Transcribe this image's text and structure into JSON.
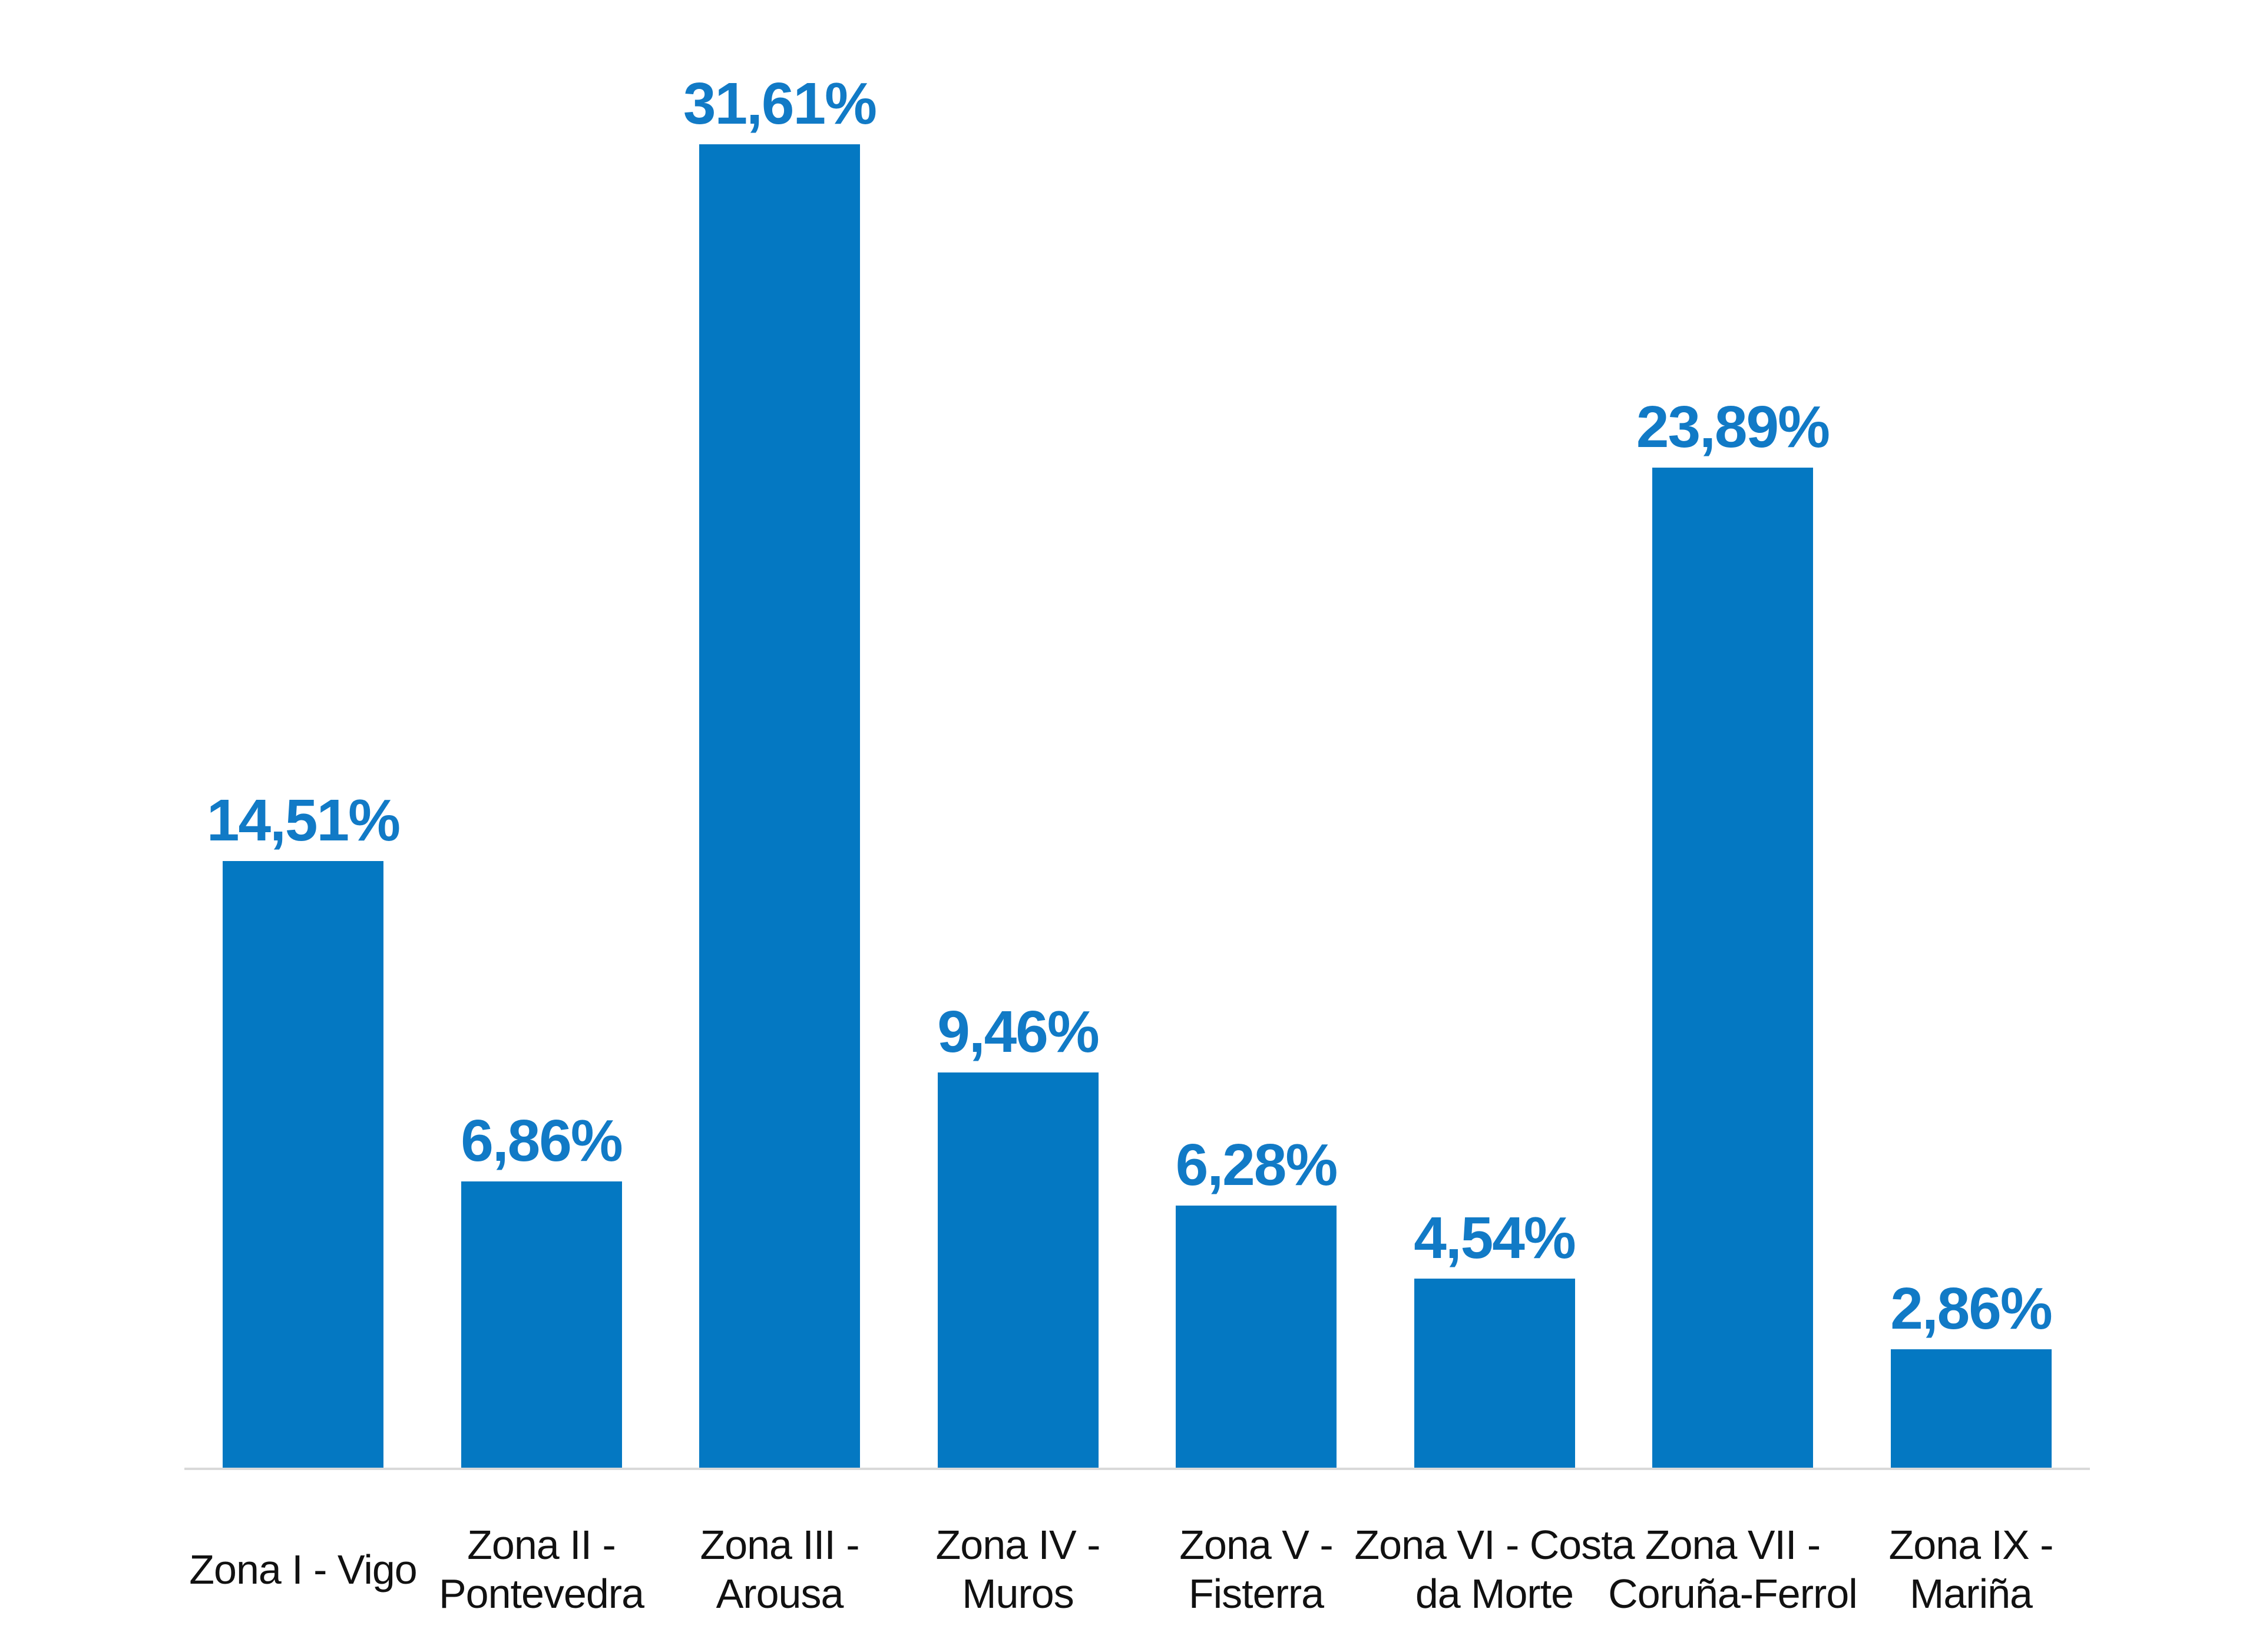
{
  "page": {
    "background": "#ffffff"
  },
  "chart_data": {
    "type": "bar",
    "title": "",
    "xlabel": "",
    "ylabel": "",
    "categories": [
      "Zona I - Vigo",
      "Zona II - Pontevedra",
      "Zona III - Arousa",
      "Zona IV - Muros",
      "Zona V - Fisterra",
      "Zona VI - Costa da Morte",
      "Zona VII - Coruña-Ferrol",
      "Zona IX - Mariña"
    ],
    "values": [
      14.51,
      6.86,
      31.61,
      9.46,
      6.28,
      4.54,
      23.89,
      2.86
    ],
    "value_labels": [
      "14,51%",
      "6,86%",
      "31,61%",
      "9,46%",
      "6,28%",
      "4,54%",
      "23,89%",
      "2,86%"
    ],
    "decimal_separator": ",",
    "unit": "%",
    "ylim": [
      0,
      33
    ],
    "grid": false,
    "legend": "none",
    "y_axis_visible": false,
    "x_axis_line_visible": true,
    "value_label_position": "above-bar",
    "colors": {
      "bar": "#0478c2",
      "value_label": "#117ac6",
      "category_label": "#111111",
      "axis_line": "#d9d9d9",
      "background": "#ffffff"
    }
  }
}
